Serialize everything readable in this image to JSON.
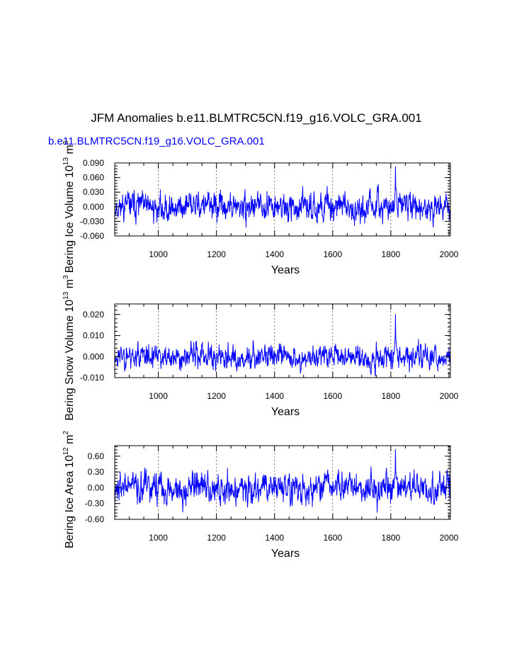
{
  "title": "JFM Anomalies b.e11.BLMTRC5CN.f19_g16.VOLC_GRA.001",
  "subtitle": "b.e11.BLMTRC5CN.f19_g16.VOLC_GRA.001",
  "colors": {
    "series": "#0000ff",
    "axis": "#000000",
    "subtitle": "#0000ff",
    "ref": "#555555"
  },
  "chart_data": [
    {
      "type": "line",
      "name": "ice-volume",
      "ylabel": "Bering Ice Volume 10",
      "ylabel_sup": "13",
      "ylabel_unit": " m",
      "ylabel_unit_sup": "3",
      "xlabel": "Years",
      "xlim": [
        850,
        2005
      ],
      "ylim": [
        -0.06,
        0.09
      ],
      "xticks": [
        1000,
        1200,
        1400,
        1600,
        1800,
        2000
      ],
      "xtick_labels": [
        "1000",
        "1200",
        "1400",
        "1600",
        "1800",
        "2000"
      ],
      "yticks": [
        -0.06,
        -0.03,
        0.0,
        0.03,
        0.06,
        0.09
      ],
      "ytick_labels": [
        "-0.060",
        "-0.030",
        "0.000",
        "0.030",
        "0.060",
        "0.090"
      ],
      "ref_lines_x": [
        1000,
        1200,
        1400,
        1600,
        1800,
        2000
      ],
      "seed": 11,
      "std": 0.0135,
      "peak": {
        "x": 1816,
        "y": 0.082
      },
      "x_start": 850,
      "x_end": 2005
    },
    {
      "type": "line",
      "name": "snow-volume",
      "ylabel": "Bering Snow Volume 10",
      "ylabel_sup": "13",
      "ylabel_unit": " m",
      "ylabel_unit_sup": "3",
      "xlabel": "Years",
      "xlim": [
        850,
        2005
      ],
      "ylim": [
        -0.01,
        0.025
      ],
      "xticks": [
        1000,
        1200,
        1400,
        1600,
        1800,
        2000
      ],
      "xtick_labels": [
        "1000",
        "1200",
        "1400",
        "1600",
        "1800",
        "2000"
      ],
      "yticks": [
        -0.01,
        0.0,
        0.01,
        0.02
      ],
      "ytick_labels": [
        "-0.010",
        "0.000",
        "0.010",
        "0.020"
      ],
      "ref_lines_x": [
        1000,
        1200,
        1400,
        1600,
        1800,
        2000
      ],
      "seed": 23,
      "std": 0.0028,
      "peak": {
        "x": 1816,
        "y": 0.02
      },
      "x_start": 850,
      "x_end": 2005
    },
    {
      "type": "line",
      "name": "ice-area",
      "ylabel": "Bering Ice Area 10",
      "ylabel_sup": "12",
      "ylabel_unit": " m",
      "ylabel_unit_sup": "2",
      "xlabel": "Years",
      "xlim": [
        850,
        2005
      ],
      "ylim": [
        -0.6,
        0.8
      ],
      "xticks": [
        1000,
        1200,
        1400,
        1600,
        1800,
        2000
      ],
      "xtick_labels": [
        "1000",
        "1200",
        "1400",
        "1600",
        "1800",
        "2000"
      ],
      "yticks": [
        -0.6,
        -0.3,
        0.0,
        0.3,
        0.6
      ],
      "ytick_labels": [
        "-0.60",
        "-0.30",
        "0.00",
        "0.30",
        "0.60"
      ],
      "ref_lines_x": [
        1000,
        1200,
        1400,
        1600,
        1800,
        2000
      ],
      "seed": 37,
      "std": 0.14,
      "peak": {
        "x": 1816,
        "y": 0.73
      },
      "x_start": 850,
      "x_end": 2005
    }
  ]
}
